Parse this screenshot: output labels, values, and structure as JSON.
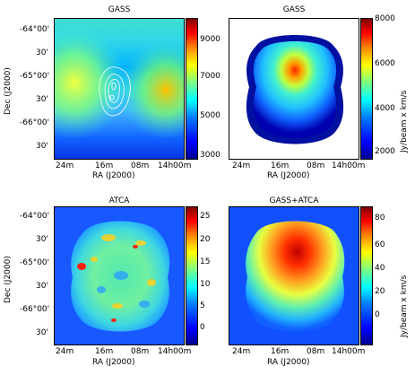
{
  "panels": [
    {
      "title": "GASS",
      "xlabel": "RA (J2000)",
      "ylabel": "Dec (J2000)",
      "xticks": [
        "24m",
        "16m",
        "08m",
        "14h00m"
      ],
      "yticks": [
        "-64°00'",
        "30'",
        "-65°00'",
        "30'",
        "-66°00'",
        "30'"
      ],
      "cbar_ticks": [
        "9000",
        "7000",
        "5000",
        "3000"
      ]
    },
    {
      "title": "GASS",
      "xlabel": "RA (J2000)",
      "cbar_label": "Jy/beam x km/s",
      "xticks": [
        "24m",
        "16m",
        "08m",
        "14h00m"
      ],
      "cbar_ticks": [
        "8000",
        "6000",
        "4000",
        "2000"
      ]
    },
    {
      "title": "ATCA",
      "xlabel": "RA (J2000)",
      "ylabel": "Dec (J2000)",
      "xticks": [
        "24m",
        "16m",
        "08m",
        "14h00m"
      ],
      "yticks": [
        "-64°00'",
        "30'",
        "-65°00'",
        "30'",
        "-66°00'",
        "30'"
      ],
      "cbar_ticks": [
        "25",
        "20",
        "15",
        "10",
        "5",
        "0"
      ]
    },
    {
      "title": "GASS+ATCA",
      "xlabel": "RA (J2000)",
      "cbar_label": "Jy/beam x km/s",
      "xticks": [
        "24m",
        "16m",
        "08m",
        "14h00m"
      ],
      "cbar_ticks": [
        "80",
        "60",
        "40",
        "20",
        "0"
      ]
    }
  ]
}
